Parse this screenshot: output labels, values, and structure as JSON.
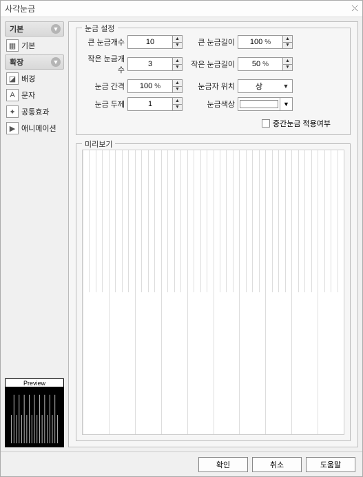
{
  "window": {
    "title": "사각눈금",
    "close_glyph": "⤬"
  },
  "sidebar": {
    "section1": {
      "title": "기본"
    },
    "item_basic": {
      "label": "기본"
    },
    "section2": {
      "title": "확장"
    },
    "item_bg": {
      "label": "배경"
    },
    "item_text": {
      "label": "문자"
    },
    "item_effect": {
      "label": "공통효과"
    },
    "item_anim": {
      "label": "애니메이션"
    },
    "preview_label": "Preview"
  },
  "settings": {
    "legend": "눈금 설정",
    "major_count": {
      "label": "큰 눈금개수",
      "value": "10"
    },
    "minor_count": {
      "label": "작은 눈금개수",
      "value": "3"
    },
    "gap": {
      "label": "눈금 간격",
      "value": "100",
      "unit": "%"
    },
    "thickness": {
      "label": "눈금 두께",
      "value": "1"
    },
    "major_len": {
      "label": "큰 눈금길이",
      "value": "100",
      "unit": "%"
    },
    "minor_len": {
      "label": "작은 눈금길이",
      "value": "50",
      "unit": "%"
    },
    "label_pos": {
      "label": "눈금자 위치",
      "value": "상"
    },
    "color": {
      "label": "눈금색상",
      "swatch": "#ffffff"
    },
    "apply_mid": {
      "label": "중간눈금 적용여부"
    }
  },
  "preview": {
    "legend": "미리보기",
    "major_ticks": 10,
    "minor_per_major": 3,
    "tick_color": "#dddddd",
    "bg": "#ffffff"
  },
  "preview_thumb": {
    "lines": 20,
    "line_color": "#bbbbbb",
    "bg": "#000000"
  },
  "buttons": {
    "ok": "확인",
    "cancel": "취소",
    "help": "도움말"
  },
  "colors": {
    "dialog_bg": "#f0f0f0",
    "panel_bg": "#f6f6f6",
    "border": "#bbbbbb"
  }
}
